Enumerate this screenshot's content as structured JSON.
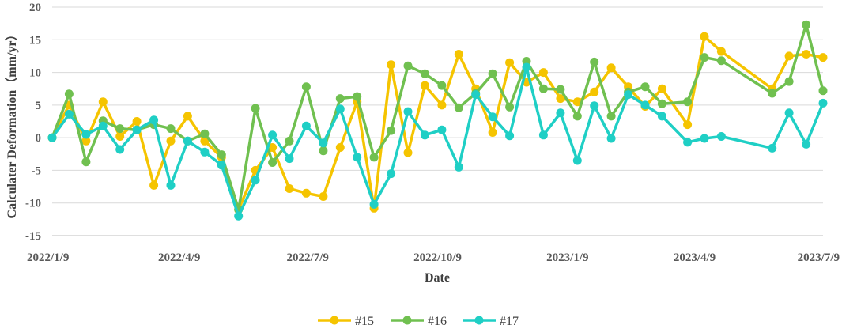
{
  "chart_data": {
    "type": "line",
    "xlabel": "Date",
    "ylabel": "Calculater Deformation（mm/yr）",
    "ylim": [
      -15,
      20
    ],
    "yticks": [
      -15,
      -10,
      -5,
      0,
      5,
      10,
      15,
      20
    ],
    "xlim": [
      "2022-01-09",
      "2023-07-09"
    ],
    "xticks": [
      {
        "label": "2022/1/9",
        "date": "2022-01-09"
      },
      {
        "label": "2022/4/9",
        "date": "2022-04-09"
      },
      {
        "label": "2022/7/9",
        "date": "2022-07-09"
      },
      {
        "label": "2022/10/9",
        "date": "2022-10-09"
      },
      {
        "label": "2023/1/9",
        "date": "2023-01-09"
      },
      {
        "label": "2023/4/9",
        "date": "2023-04-09"
      },
      {
        "label": "2023/7/9",
        "date": "2023-07-09"
      }
    ],
    "grid": "horizontal",
    "legend_position": "bottom",
    "x": [
      "2022-01-09",
      "2022-01-21",
      "2022-02-02",
      "2022-02-14",
      "2022-02-26",
      "2022-03-10",
      "2022-03-22",
      "2022-04-03",
      "2022-04-15",
      "2022-04-27",
      "2022-05-09",
      "2022-05-21",
      "2022-06-02",
      "2022-06-14",
      "2022-06-26",
      "2022-07-08",
      "2022-07-20",
      "2022-08-01",
      "2022-08-13",
      "2022-08-25",
      "2022-09-06",
      "2022-09-18",
      "2022-09-30",
      "2022-10-12",
      "2022-10-24",
      "2022-11-05",
      "2022-11-17",
      "2022-11-29",
      "2022-12-11",
      "2022-12-23",
      "2023-01-04",
      "2023-01-16",
      "2023-01-28",
      "2023-02-09",
      "2023-02-21",
      "2023-03-05",
      "2023-03-17",
      "2023-04-04",
      "2023-04-16",
      "2023-04-28",
      "2023-06-03",
      "2023-06-15",
      "2023-06-27",
      "2023-07-09"
    ],
    "series": [
      {
        "name": "#15",
        "color": "#f5c400",
        "values": [
          0,
          5,
          -0.5,
          5.5,
          0.2,
          2.5,
          -7.3,
          -0.5,
          3.3,
          -0.5,
          -3,
          -11,
          -5,
          -1.5,
          -7.8,
          -8.5,
          -9,
          -1.5,
          5.5,
          -10.8,
          11.2,
          -2.3,
          8,
          5,
          12.8,
          7.5,
          0.8,
          11.5,
          8.5,
          10,
          6,
          5.5,
          7,
          10.7,
          7.8,
          4.8,
          7.5,
          2,
          15.5,
          13.2,
          7.5,
          12.5,
          12.8,
          12.3
        ]
      },
      {
        "name": "#16",
        "color": "#70c050",
        "values": [
          0,
          6.7,
          -3.7,
          2.6,
          1.4,
          1.2,
          2,
          1.4,
          -0.5,
          0.6,
          -2.6,
          -11,
          4.5,
          -3.8,
          -0.5,
          7.8,
          -2,
          6,
          6.3,
          -3,
          1.1,
          11,
          9.8,
          8,
          4.6,
          6.8,
          9.8,
          4.7,
          11.7,
          7.5,
          7.4,
          3.3,
          11.6,
          3.3,
          7,
          7.8,
          5.2,
          5.5,
          12.3,
          11.8,
          6.8,
          8.6,
          17.3,
          7.2
        ]
      },
      {
        "name": "#17",
        "color": "#1fcfc5",
        "values": [
          0,
          3.6,
          0.5,
          1.8,
          -1.8,
          1.2,
          2.7,
          -7.3,
          -0.5,
          -2.2,
          -4.2,
          -12,
          -6.5,
          0.4,
          -3.2,
          1.8,
          -0.8,
          4.4,
          -3,
          -10.2,
          -5.5,
          4,
          0.4,
          1.2,
          -4.5,
          6.6,
          3.2,
          0.3,
          10.8,
          0.4,
          3.8,
          -3.5,
          4.9,
          -0.1,
          6.6,
          5,
          3.3,
          -0.7,
          -0.1,
          0.2,
          -1.6,
          3.8,
          -1,
          5.3
        ]
      }
    ]
  }
}
